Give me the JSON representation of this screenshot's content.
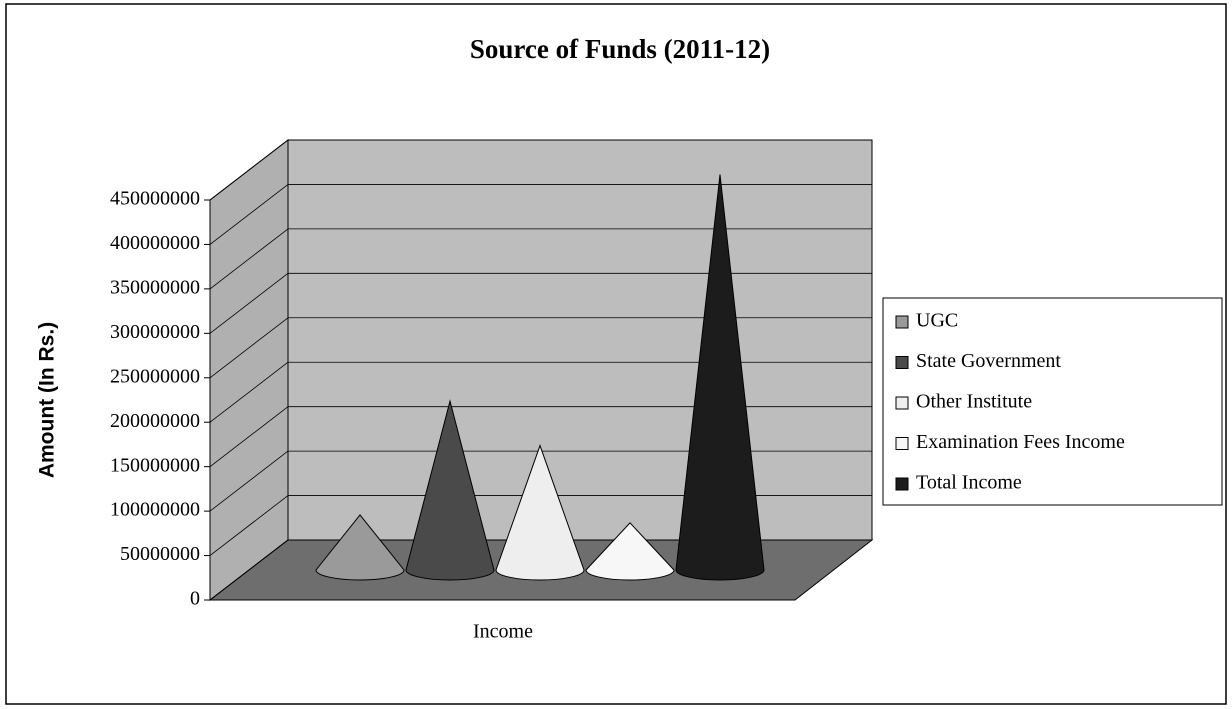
{
  "chart_data": {
    "type": "cone3d",
    "title": "Source of Funds (2011-12)",
    "y_label": "Amount (In Rs.)",
    "categories": [
      "Income"
    ],
    "series": [
      {
        "name": "UGC",
        "color": "#9a9a9a",
        "values": [
          62000000
        ]
      },
      {
        "name": "State Government",
        "color": "#4a4a4a",
        "values": [
          190000000
        ]
      },
      {
        "name": "Other Institute",
        "color": "#eeeeee",
        "values": [
          140000000
        ]
      },
      {
        "name": "Examination Fees Income",
        "color": "#f7f7f7",
        "values": [
          53000000
        ]
      },
      {
        "name": "Total Income",
        "color": "#1c1c1c",
        "values": [
          445000000
        ]
      }
    ],
    "ylim": [
      0,
      450000000
    ],
    "yticks": [
      0,
      50000000,
      100000000,
      150000000,
      200000000,
      250000000,
      300000000,
      350000000,
      400000000,
      450000000
    ],
    "grid": true,
    "legend": "right"
  }
}
